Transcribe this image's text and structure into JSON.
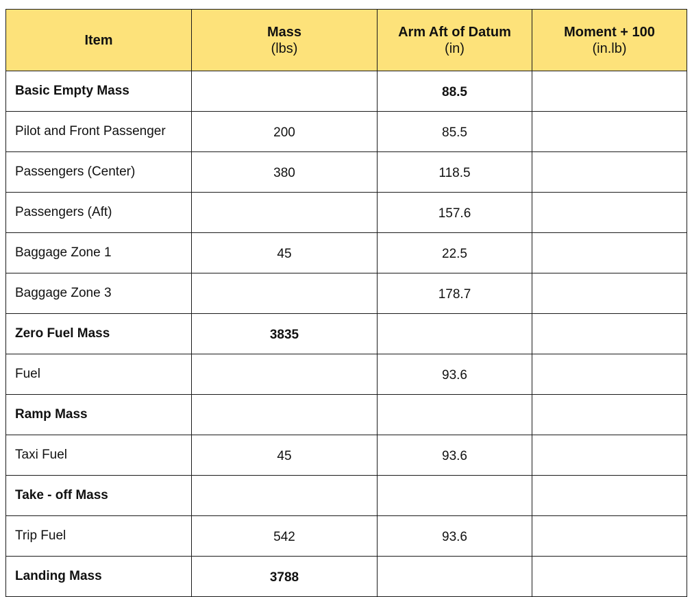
{
  "colors": {
    "header_bg": "#fde27a",
    "border": "#1a1a1a",
    "text": "#111111"
  },
  "headers": [
    {
      "main": "Item",
      "unit": ""
    },
    {
      "main": "Mass",
      "unit": "(lbs)"
    },
    {
      "main": "Arm Aft of Datum",
      "unit": "(in)"
    },
    {
      "main": "Moment + 100",
      "unit": "(in.lb)"
    }
  ],
  "rows": [
    {
      "item": "Basic Empty Mass",
      "mass": "",
      "arm": "88.5",
      "moment": "",
      "bold": true
    },
    {
      "item": "Pilot and Front Passenger",
      "mass": "200",
      "arm": "85.5",
      "moment": "",
      "bold": false
    },
    {
      "item": "Passengers (Center)",
      "mass": "380",
      "arm": "118.5",
      "moment": "",
      "bold": false
    },
    {
      "item": "Passengers (Aft)",
      "mass": "",
      "arm": "157.6",
      "moment": "",
      "bold": false
    },
    {
      "item": "Baggage Zone 1",
      "mass": "45",
      "arm": "22.5",
      "moment": "",
      "bold": false
    },
    {
      "item": "Baggage Zone 3",
      "mass": "",
      "arm": "178.7",
      "moment": "",
      "bold": false
    },
    {
      "item": "Zero Fuel Mass",
      "mass": "3835",
      "arm": "",
      "moment": "",
      "bold": true
    },
    {
      "item": "Fuel",
      "mass": "",
      "arm": "93.6",
      "moment": "",
      "bold": false
    },
    {
      "item": "Ramp Mass",
      "mass": "",
      "arm": "",
      "moment": "",
      "bold": true
    },
    {
      "item": "Taxi Fuel",
      "mass": "45",
      "arm": "93.6",
      "moment": "",
      "bold": false
    },
    {
      "item": "Take - off Mass",
      "mass": "",
      "arm": "",
      "moment": "",
      "bold": true
    },
    {
      "item": "Trip Fuel",
      "mass": "542",
      "arm": "93.6",
      "moment": "",
      "bold": false
    },
    {
      "item": "Landing Mass",
      "mass": "3788",
      "arm": "",
      "moment": "",
      "bold": true
    }
  ]
}
